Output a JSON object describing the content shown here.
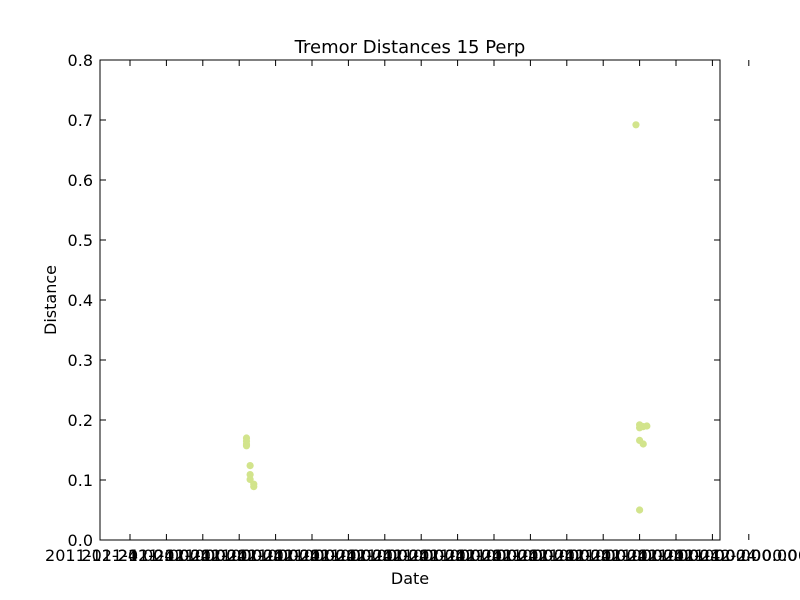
{
  "chart_data": {
    "type": "scatter",
    "title": "Tremor Distances 15 Perp",
    "xlabel": "Date",
    "ylabel": "Distance",
    "ylim": [
      0.0,
      0.8
    ],
    "yticks": [
      "0.0",
      "0.1",
      "0.2",
      "0.3",
      "0.4",
      "0.5",
      "0.6",
      "0.7",
      "0.8"
    ],
    "ytick_values": [
      0.0,
      0.1,
      0.2,
      0.3,
      0.4,
      0.5,
      0.6,
      0.7,
      0.8
    ],
    "xticks": [
      "2011-12-24 00:00:00",
      "2011-12-24 00:00:00",
      "2011-12-24 00:00:00",
      "2011-12-24 00:00:00",
      "2011-12-24 00:00:00",
      "2011-12-24 00:00:00",
      "2011-12-24 00:00:00",
      "2011-12-24 00:00:00",
      "2011-12-24 00:00:00",
      "2011-12-24 00:00:00",
      "2011-12-24 00:00:00",
      "2011-12-24 00:00:00",
      "2011-12-24 00:00:00",
      "2011-12-24 00:00:00",
      "2011-12-24 00:00:00",
      "2011-12-24 00:00:00",
      "2011-12-24 00:00:00",
      "2011-12-24 00:00:00"
    ],
    "grid": false,
    "marker_color": "#d2e48c",
    "series": [
      {
        "points": [
          {
            "x": 3.2,
            "y": 0.17
          },
          {
            "x": 3.2,
            "y": 0.165
          },
          {
            "x": 3.2,
            "y": 0.16
          },
          {
            "x": 3.2,
            "y": 0.157
          },
          {
            "x": 3.3,
            "y": 0.124
          },
          {
            "x": 3.3,
            "y": 0.109
          },
          {
            "x": 3.3,
            "y": 0.101
          },
          {
            "x": 3.4,
            "y": 0.093
          },
          {
            "x": 3.4,
            "y": 0.089
          },
          {
            "x": 13.9,
            "y": 0.692
          },
          {
            "x": 14.0,
            "y": 0.192
          },
          {
            "x": 14.0,
            "y": 0.187
          },
          {
            "x": 14.1,
            "y": 0.189
          },
          {
            "x": 14.2,
            "y": 0.19
          },
          {
            "x": 14.0,
            "y": 0.166
          },
          {
            "x": 14.1,
            "y": 0.16
          },
          {
            "x": 14.0,
            "y": 0.05
          }
        ]
      }
    ]
  }
}
